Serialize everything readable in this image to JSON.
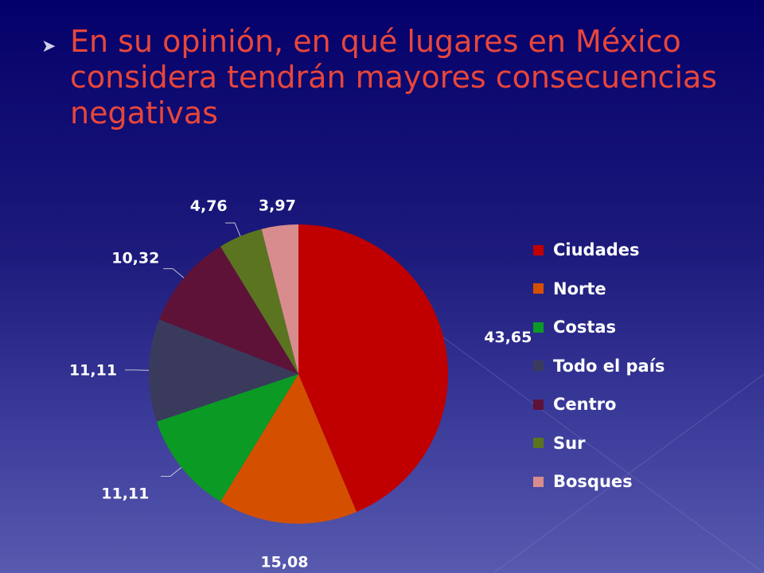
{
  "slide": {
    "bullet_glyph": "➤",
    "title": "En su opinión, en qué lugares en México considera tendrán mayores consecuencias negativas"
  },
  "chart_data": {
    "type": "pie",
    "title": "",
    "categories": [
      "Ciudades",
      "Norte",
      "Costas",
      "Todo el país",
      "Centro",
      "Sur",
      "Bosques"
    ],
    "values": [
      43.65,
      15.08,
      11.11,
      11.11,
      10.32,
      4.76,
      3.97
    ],
    "data_labels": [
      "43,65",
      "15,08",
      "11,11",
      "11,11",
      "10,32",
      "4,76",
      "3,97"
    ],
    "colors": [
      "#c00000",
      "#d45000",
      "#0b9a24",
      "#3a3b5c",
      "#5e1238",
      "#5b7420",
      "#d98c8e"
    ],
    "start_angle": "12 o'clock",
    "direction": "clockwise",
    "legend_position": "right"
  }
}
